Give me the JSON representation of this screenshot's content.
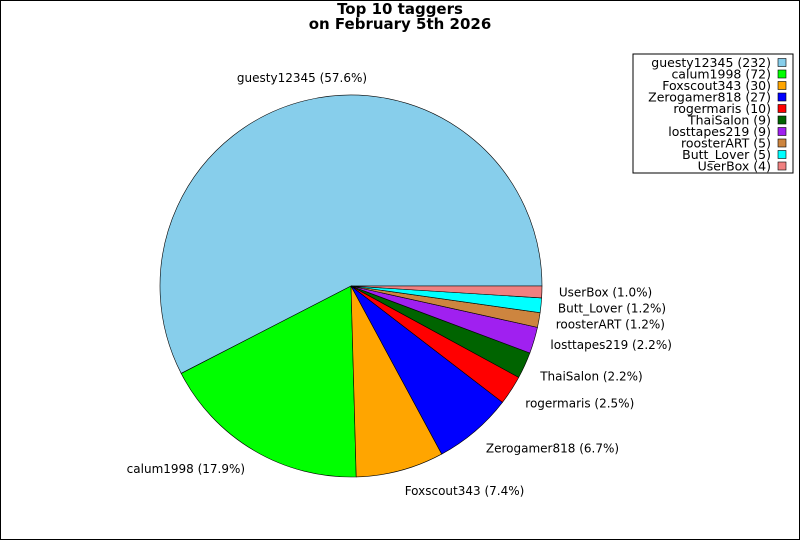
{
  "chart_data": {
    "type": "pie",
    "title_line1": "Top 10 taggers",
    "title_line2": "on February 5th 2026",
    "slices": [
      {
        "name": "guesty12345",
        "value": 232,
        "percent": "57.6%",
        "legend": "guesty12345 (232)",
        "label": "guesty12345 (57.6%)",
        "color": "#87ceeb"
      },
      {
        "name": "calum1998",
        "value": 72,
        "percent": "17.9%",
        "legend": "calum1998 (72)",
        "label": "calum1998 (17.9%)",
        "color": "#00ff00"
      },
      {
        "name": "Foxscout343",
        "value": 30,
        "percent": "7.4%",
        "legend": "Foxscout343 (30)",
        "label": "Foxscout343 (7.4%)",
        "color": "#ffa500"
      },
      {
        "name": "Zerogamer818",
        "value": 27,
        "percent": "6.7%",
        "legend": "Zerogamer818 (27)",
        "label": "Zerogamer818 (6.7%)",
        "color": "#0000ff"
      },
      {
        "name": "rogermaris",
        "value": 10,
        "percent": "2.5%",
        "legend": "rogermaris (10)",
        "label": "rogermaris (2.5%)",
        "color": "#ff0000"
      },
      {
        "name": "ThaiSalon",
        "value": 9,
        "percent": "2.2%",
        "legend": "ThaiSalon (9)",
        "label": "ThaiSalon (2.2%)",
        "color": "#006400"
      },
      {
        "name": "losttapes219",
        "value": 9,
        "percent": "2.2%",
        "legend": "losttapes219 (9)",
        "label": "losttapes219 (2.2%)",
        "color": "#a020f0"
      },
      {
        "name": "roosterART",
        "value": 5,
        "percent": "1.2%",
        "legend": "roosterART (5)",
        "label": "roosterART (1.2%)",
        "color": "#cd853f"
      },
      {
        "name": "Butt_Lover",
        "value": 5,
        "percent": "1.2%",
        "legend": "Butt_Lover (5)",
        "label": "Butt_Lover (1.2%)",
        "color": "#00ffff"
      },
      {
        "name": "UserBox",
        "value": 4,
        "percent": "1.0%",
        "legend": "UserBox (4)",
        "label": "UserBox (1.0%)",
        "color": "#f08080"
      }
    ],
    "legend_position": "top-right"
  }
}
